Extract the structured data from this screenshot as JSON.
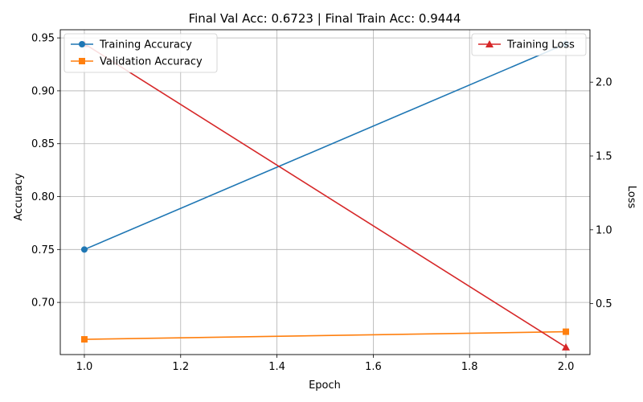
{
  "chart_data": {
    "type": "line",
    "title": "Final Val Acc: 0.6723 | Final Train Acc: 0.9444",
    "xlabel": "Epoch",
    "ylabel": "Accuracy",
    "y2label": "Loss",
    "xlim": [
      0.95,
      2.05
    ],
    "ylim": [
      0.6507,
      0.9577
    ],
    "y2lim": [
      0.155,
      2.355
    ],
    "grid": true,
    "x_ticks": [
      1.0,
      1.2,
      1.4,
      1.6,
      1.8,
      2.0
    ],
    "x_tick_labels": [
      "1.0",
      "1.2",
      "1.4",
      "1.6",
      "1.8",
      "2.0"
    ],
    "y_ticks": [
      0.7,
      0.75,
      0.8,
      0.85,
      0.9,
      0.95
    ],
    "y_tick_labels": [
      "0.70",
      "0.75",
      "0.80",
      "0.85",
      "0.90",
      "0.95"
    ],
    "y2_ticks": [
      0.5,
      1.0,
      1.5,
      2.0
    ],
    "y2_tick_labels": [
      "0.5",
      "1.0",
      "1.5",
      "2.0"
    ],
    "x": [
      1,
      2
    ],
    "series": [
      {
        "name": "Training Accuracy",
        "axis": "left",
        "values": [
          0.75,
          0.9444
        ],
        "color": "#1f77b4",
        "marker": "circle"
      },
      {
        "name": "Validation Accuracy",
        "axis": "left",
        "values": [
          0.6651,
          0.6723
        ],
        "color": "#ff7f0e",
        "marker": "square"
      },
      {
        "name": "Training Loss",
        "axis": "right",
        "values": [
          2.26,
          0.205
        ],
        "color": "#d62728",
        "marker": "triangle"
      }
    ],
    "legend_left_placement": "upper-left",
    "legend_right_placement": "upper-right"
  }
}
